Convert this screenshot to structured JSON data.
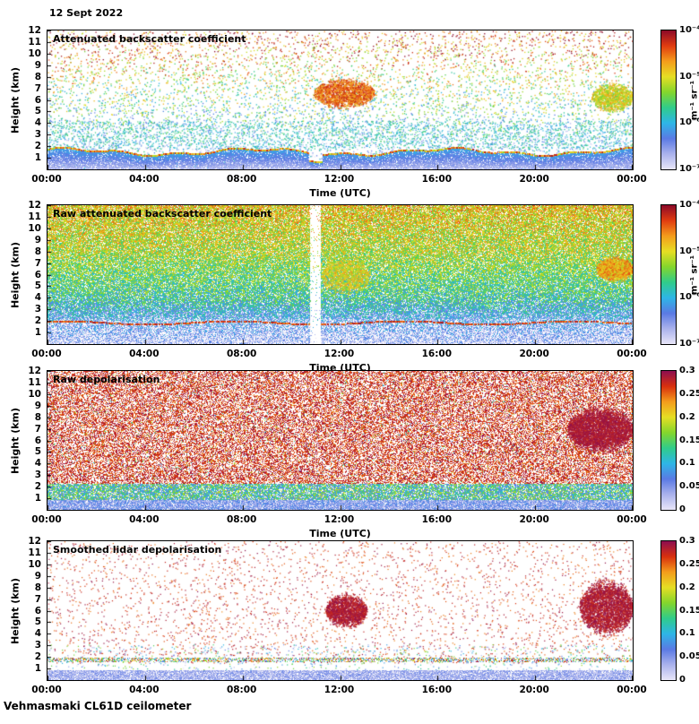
{
  "page": {
    "date_label": "12 Sept 2022",
    "footer_label": "Vehmasmaki CL61D ceilometer",
    "background_color": "#ffffff"
  },
  "colormaps": {
    "backscatter": [
      "#e8e6f8",
      "#aab2ec",
      "#5a7ae4",
      "#2eb6e6",
      "#30cc8a",
      "#84d62c",
      "#e6de24",
      "#f49c1c",
      "#e03c10",
      "#8c0a28"
    ],
    "depolarisation": [
      "#e8e6f8",
      "#aab2ec",
      "#5a7ae4",
      "#2eb6e6",
      "#30cc8a",
      "#84d62c",
      "#e6de24",
      "#f49c1c",
      "#d8300e",
      "#8c0e50"
    ]
  },
  "chart_data": [
    {
      "type": "heatmap",
      "title": "Attenuated backscatter coefficient",
      "xlabel": "Time (UTC)",
      "ylabel": "Height (km)",
      "x_ticks": [
        "00:00",
        "04:00",
        "08:00",
        "12:00",
        "16:00",
        "20:00",
        "00:00"
      ],
      "x_range_hours": [
        0,
        24
      ],
      "y_ticks": [
        "12",
        "11",
        "10",
        "9",
        "8",
        "7",
        "6",
        "5",
        "4",
        "3",
        "2",
        "1"
      ],
      "y_range_km": [
        0,
        12
      ],
      "grid": false,
      "legend": "none",
      "colormap": "backscatter",
      "colorbar": {
        "scale": "log",
        "range": [
          1e-07,
          0.0001
        ],
        "ticks": [
          "10⁻⁴",
          "10⁻⁵",
          "10⁻⁶",
          "10⁻⁷"
        ],
        "unit_label": "m⁻¹ sr⁻¹"
      },
      "render": {
        "style": "backscatter_smoothed",
        "seed": 11,
        "speckle_count": 8500,
        "mid_band_km": [
          1.8,
          4.2
        ],
        "mid_band_count": 2200,
        "boundary_layer_top_km": 1.5,
        "layer_line_v": [
          0.55,
          0.97
        ],
        "gap_time_h": [
          10.7,
          11.25
        ],
        "clouds": [
          {
            "time_h": [
              10.9,
              13.4
            ],
            "height_km": [
              5.5,
              7.7
            ],
            "v": [
              0.72,
              0.95
            ],
            "points": 1600
          },
          {
            "time_h": [
              22.3,
              24.0
            ],
            "height_km": [
              5.2,
              7.3
            ],
            "v": [
              0.5,
              0.8
            ],
            "points": 1100
          }
        ]
      }
    },
    {
      "type": "heatmap",
      "title": "Raw attenuated backscatter coefficient",
      "xlabel": "Time (UTC)",
      "ylabel": "Height (km)",
      "x_ticks": [
        "00:00",
        "04:00",
        "08:00",
        "12:00",
        "16:00",
        "20:00",
        "00:00"
      ],
      "x_range_hours": [
        0,
        24
      ],
      "y_ticks": [
        "12",
        "11",
        "10",
        "9",
        "8",
        "7",
        "6",
        "5",
        "4",
        "3",
        "2",
        "1"
      ],
      "y_range_km": [
        0,
        12
      ],
      "grid": false,
      "legend": "none",
      "colormap": "backscatter",
      "colorbar": {
        "scale": "log",
        "range": [
          1e-07,
          0.0001
        ],
        "ticks": [
          "10⁻⁴",
          "10⁻⁵",
          "10⁻⁶",
          "10⁻⁷"
        ],
        "unit_label": "m⁻¹ sr⁻¹"
      },
      "render": {
        "style": "backscatter_raw",
        "seed": 22,
        "gap_time_h": [
          10.75,
          11.2
        ],
        "aerosol_line_km": 1.9,
        "clouds": [
          {
            "time_h": [
              22.5,
              24.0
            ],
            "height_km": [
              5.6,
              7.4
            ],
            "v": [
              0.6,
              0.9
            ],
            "points": 1800
          },
          {
            "time_h": [
              11.2,
              13.2
            ],
            "height_km": [
              4.6,
              7.2
            ],
            "v": [
              0.55,
              0.8
            ],
            "points": 900
          }
        ]
      }
    },
    {
      "type": "heatmap",
      "title": "Raw depolarisation",
      "xlabel": "Time (UTC)",
      "ylabel": "Height (km)",
      "x_ticks": [
        "00:00",
        "04:00",
        "08:00",
        "12:00",
        "16:00",
        "20:00",
        "00:00"
      ],
      "x_range_hours": [
        0,
        24
      ],
      "y_ticks": [
        "12",
        "11",
        "10",
        "9",
        "8",
        "7",
        "6",
        "5",
        "4",
        "3",
        "2",
        "1"
      ],
      "y_range_km": [
        0,
        12
      ],
      "grid": false,
      "legend": "none",
      "colormap": "depolarisation",
      "colorbar": {
        "scale": "linear",
        "range": [
          0,
          0.3
        ],
        "ticks": [
          "0.3",
          "0.25",
          "0.2",
          "0.15",
          "0.1",
          "0.05",
          "0"
        ]
      },
      "render": {
        "style": "depolarisation_raw",
        "seed": 33,
        "noise_density": 0.5,
        "noise_v": [
          0.8,
          1.0
        ],
        "surface_band_km": [
          0,
          2.3
        ],
        "dark_patch": {
          "time_h": [
            21.3,
            24.0
          ],
          "height_km": [
            5.3,
            8.6
          ],
          "v": [
            0.92,
            1.0
          ],
          "points": 2800
        }
      }
    },
    {
      "type": "heatmap",
      "title": "Smoothed lidar depolarisation",
      "xlabel": "",
      "ylabel": "Height (km)",
      "x_ticks": [
        "00:00",
        "04:00",
        "08:00",
        "12:00",
        "16:00",
        "20:00",
        "00:00"
      ],
      "x_range_hours": [
        0,
        24
      ],
      "y_ticks": [
        "12",
        "11",
        "10",
        "9",
        "8",
        "7",
        "6",
        "5",
        "4",
        "3",
        "2",
        "1"
      ],
      "y_range_km": [
        0,
        12
      ],
      "grid": false,
      "legend": "none",
      "colormap": "depolarisation",
      "colorbar": {
        "scale": "linear",
        "range": [
          0,
          0.3
        ],
        "ticks": [
          "0.3",
          "0.25",
          "0.2",
          "0.15",
          "0.1",
          "0.05",
          "0"
        ]
      },
      "render": {
        "style": "depolarisation_smoothed",
        "seed": 44,
        "speckle_count": 3200,
        "speckle_v": [
          0.8,
          1.0
        ],
        "surface_band_km": 0.85,
        "speckle_line_km": [
          1.55,
          1.95
        ],
        "blobs": [
          {
            "time_h": [
              11.4,
              13.1
            ],
            "height_km": [
              4.8,
              7.3
            ],
            "v": [
              0.9,
              1.0
            ],
            "points": 1500
          },
          {
            "time_h": [
              21.8,
              24.0
            ],
            "height_km": [
              4.3,
              8.3
            ],
            "v": [
              0.9,
              1.0
            ],
            "points": 2800
          }
        ]
      }
    }
  ]
}
